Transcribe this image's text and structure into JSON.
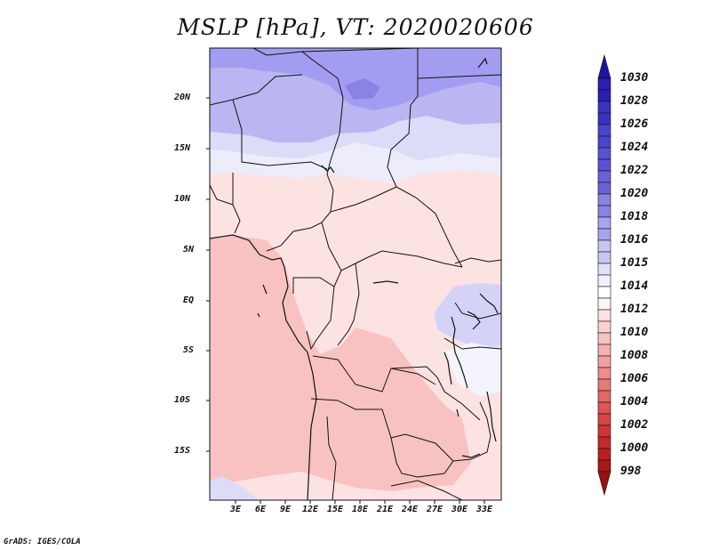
{
  "title": "MSLP [hPa], VT: 2020020606",
  "footer": "GrADS: IGES/COLA",
  "y_ticks": [
    "20N",
    "15N",
    "10N",
    "5N",
    "EQ",
    "5S",
    "10S",
    "15S"
  ],
  "x_ticks": [
    "3E",
    "6E",
    "9E",
    "12E",
    "15E",
    "18E",
    "21E",
    "24E",
    "27E",
    "30E",
    "33E"
  ],
  "colorbar": {
    "labels": [
      "1030",
      "1028",
      "1026",
      "1024",
      "1022",
      "1020",
      "1018",
      "1016",
      "1015",
      "1014",
      "1012",
      "1010",
      "1008",
      "1006",
      "1004",
      "1002",
      "1000",
      "998"
    ],
    "colors": [
      "#1f13a0",
      "#2a1fb0",
      "#3a32c0",
      "#4a45cc",
      "#6a62d8",
      "#8a82e4",
      "#a8a4ee",
      "#c8c6f5",
      "#e2e1fa",
      "#ffffff",
      "#fde2e2",
      "#f8c2c2",
      "#f0a0a0",
      "#e87a7a",
      "#dd5555",
      "#d03535",
      "#b82020",
      "#991111"
    ]
  },
  "colors": {
    "high_pressure_blue": "#b9b6f2",
    "low_pressure_pink": "#f8c2c2",
    "background": "#ffffff"
  }
}
